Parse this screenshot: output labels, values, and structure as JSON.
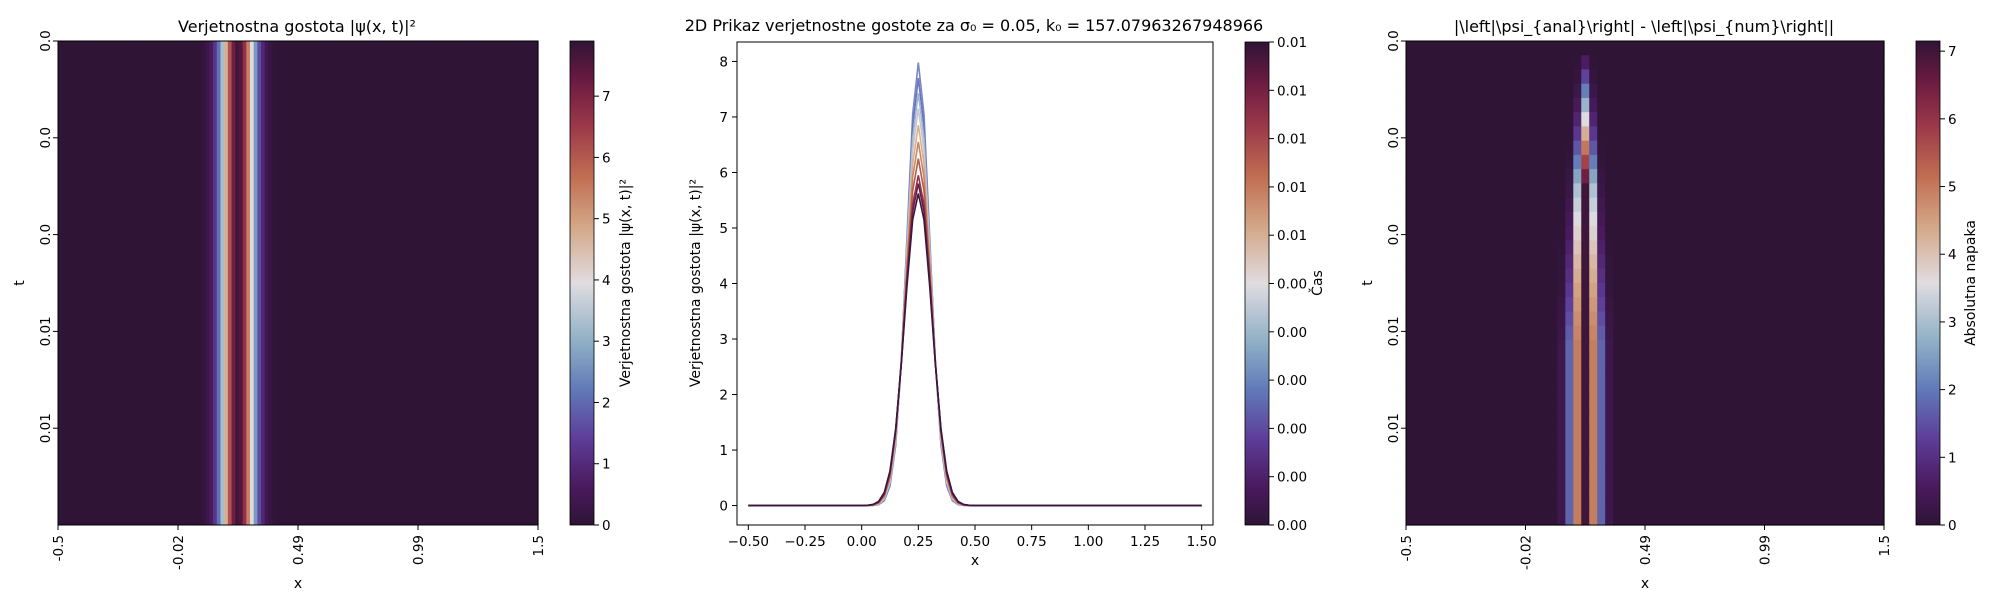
{
  "chart_data": [
    {
      "type": "heatmap",
      "title": "Verjetnostna gostota |ψ(x, t)|²",
      "xlabel": "x",
      "ylabel": "t",
      "xticks": [
        "-0.5",
        "-0.02",
        "0.49",
        "0.99",
        "1.5"
      ],
      "yticks": [
        "0.0",
        "0.0",
        "0.0",
        "0.01",
        "0.01"
      ],
      "colorbar": {
        "label": "Verjetnostna gostota |ψ(x, t)|²",
        "ticks": [
          "0",
          "1",
          "2",
          "3",
          "4",
          "5",
          "6",
          "7"
        ],
        "range": [
          0,
          7.9
        ]
      },
      "x_range": [
        -0.5,
        1.5
      ],
      "peak_x": 0.25,
      "sigma": 0.05,
      "colormap": "twilight_shifted"
    },
    {
      "type": "line",
      "title": "2D Prikaz verjetnostne gostote za σ₀ = 0.05, k₀ = 157.07963267948966",
      "xlabel": "x",
      "ylabel": "Verjetnostna gostota |ψ(x, t)|²",
      "xlim": [
        -0.55,
        1.55
      ],
      "ylim": [
        -0.35,
        8.35
      ],
      "xticks": [
        "−0.50",
        "−0.25",
        "0.00",
        "0.25",
        "0.50",
        "0.75",
        "1.00",
        "1.25",
        "1.50"
      ],
      "yticks": [
        "0",
        "1",
        "2",
        "3",
        "4",
        "5",
        "6",
        "7",
        "8"
      ],
      "center_x": 0.25,
      "series_peaks": [
        7.98,
        7.7,
        7.43,
        7.15,
        6.85,
        6.55,
        6.25,
        5.95,
        5.8,
        5.62
      ],
      "colorbar": {
        "label": "Čas",
        "ticks": [
          "0.01",
          "0.01",
          "0.01",
          "0.01",
          "0.01",
          "0.00",
          "0.00",
          "0.00",
          "0.00",
          "0.00",
          "0.00"
        ]
      }
    },
    {
      "type": "heatmap",
      "title": "|\\left|\\psi_{anal}\\right| - \\left|\\psi_{num}\\right||",
      "xlabel": "x",
      "ylabel": "t",
      "xticks": [
        "-0.5",
        "-0.02",
        "0.49",
        "0.99",
        "1.5"
      ],
      "yticks": [
        "0.0",
        "0.0",
        "0.0",
        "0.01",
        "0.01"
      ],
      "colorbar": {
        "label": "Absolutna napaka",
        "ticks": [
          "0",
          "1",
          "2",
          "3",
          "4",
          "5",
          "6",
          "7"
        ],
        "range": [
          0,
          7.15
        ]
      },
      "x_range": [
        -0.5,
        1.5
      ],
      "peak_x": 0.25,
      "colormap": "twilight_shifted"
    }
  ]
}
